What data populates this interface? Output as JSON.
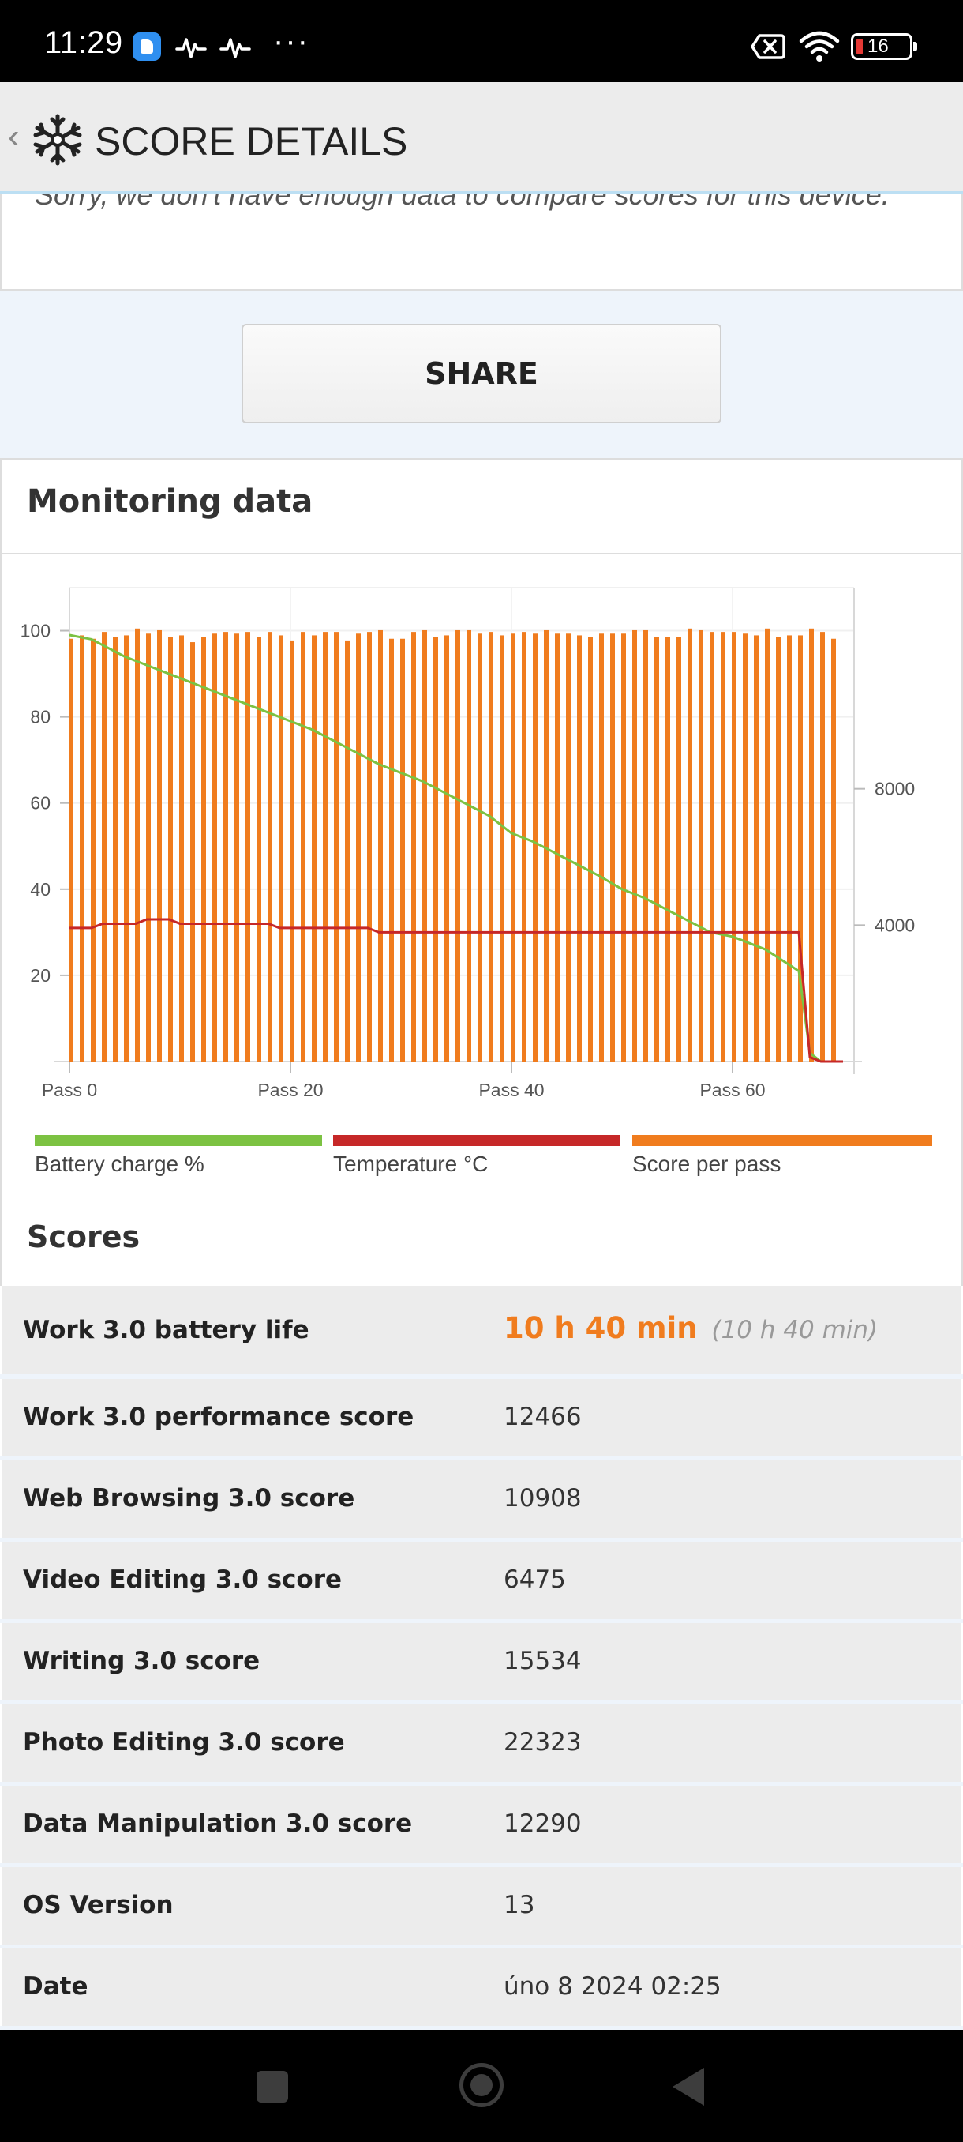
{
  "status_bar": {
    "time": "11:29",
    "battery_level": "16",
    "icons": [
      "app-notification-icon",
      "activity-pulse-icon",
      "activity-pulse-icon",
      "more-dots-icon",
      "no-sim-icon",
      "wifi-icon",
      "battery-icon"
    ]
  },
  "header": {
    "back_glyph": "‹",
    "title": "SCORE DETAILS",
    "icon": "gear-icon"
  },
  "info": {
    "text": "Sorry, we don't have enough data to compare scores for this device."
  },
  "share": {
    "label": "SHARE"
  },
  "monitoring": {
    "title": "Monitoring data",
    "legend": [
      {
        "label": "Battery charge %",
        "color": "#7cc242"
      },
      {
        "label": "Temperature °C",
        "color": "#c62828"
      },
      {
        "label": "Score per pass",
        "color": "#f07c1e"
      }
    ]
  },
  "chart_data": {
    "type": "bar",
    "x_axis": {
      "tick_labels": [
        "Pass 0",
        "Pass 20",
        "Pass 40",
        "Pass 60"
      ],
      "ticks": [
        0,
        20,
        40,
        60
      ],
      "range": [
        0,
        71
      ]
    },
    "y_left": {
      "tick_labels": [
        "20",
        "40",
        "60",
        "80",
        "100"
      ],
      "ticks": [
        20,
        40,
        60,
        80,
        100
      ],
      "range": [
        0,
        110
      ]
    },
    "y_right": {
      "tick_labels": [
        "4000",
        "8000"
      ],
      "ticks": [
        4000,
        8000
      ],
      "range": [
        0,
        13900
      ]
    },
    "grid": true,
    "legend_placement": "bottom",
    "series": [
      {
        "name": "Score per pass",
        "axis": "right",
        "color": "#f07c1e",
        "values": [
          12400,
          12500,
          12400,
          12600,
          12450,
          12500,
          12700,
          12550,
          12650,
          12450,
          12500,
          12300,
          12450,
          12550,
          12600,
          12550,
          12600,
          12450,
          12600,
          12500,
          12350,
          12600,
          12500,
          12600,
          12600,
          12350,
          12550,
          12600,
          12650,
          12400,
          12400,
          12600,
          12650,
          12450,
          12500,
          12650,
          12650,
          12550,
          12600,
          12500,
          12550,
          12600,
          12550,
          12650,
          12550,
          12550,
          12500,
          12450,
          12550,
          12550,
          12550,
          12650,
          12650,
          12450,
          12450,
          12450,
          12700,
          12650,
          12600,
          12600,
          12600,
          12550,
          12500,
          12700,
          12450,
          12500,
          12500,
          12700,
          12600,
          12400
        ]
      },
      {
        "name": "Battery charge %",
        "axis": "left",
        "color": "#7cc242",
        "x": [
          0,
          2,
          5,
          8,
          10,
          12,
          15,
          18,
          20,
          22,
          25,
          28,
          30,
          32,
          35,
          38,
          40,
          42,
          45,
          48,
          50,
          52,
          55,
          58,
          60,
          63,
          66,
          67,
          68,
          70
        ],
        "values": [
          99,
          98,
          94,
          91,
          89,
          87,
          84,
          81,
          79,
          77,
          73,
          69,
          67,
          65,
          61,
          57,
          53,
          51,
          47,
          43,
          40,
          38,
          34,
          30,
          29,
          26,
          21,
          2,
          0,
          0
        ]
      },
      {
        "name": "Temperature °C",
        "axis": "left",
        "color": "#c62828",
        "x": [
          0,
          2,
          3,
          6,
          7,
          9,
          10,
          18,
          19,
          27,
          28,
          40,
          50,
          60,
          66,
          67,
          68,
          70
        ],
        "values": [
          31,
          31,
          32,
          32,
          33,
          33,
          32,
          32,
          31,
          31,
          30,
          30,
          30,
          30,
          30,
          1,
          0,
          0
        ]
      }
    ]
  },
  "scores": {
    "title": "Scores",
    "battery_life": {
      "label": "Work 3.0 battery life",
      "value": "10 h 40 min",
      "secondary": "(10 h 40 min)"
    },
    "rows": [
      {
        "label": "Work 3.0 performance score",
        "value": "12466"
      },
      {
        "label": "Web Browsing 3.0 score",
        "value": "10908"
      },
      {
        "label": "Video Editing 3.0 score",
        "value": "6475"
      },
      {
        "label": "Writing 3.0 score",
        "value": "15534"
      },
      {
        "label": "Photo Editing 3.0 score",
        "value": "22323"
      },
      {
        "label": "Data Manipulation 3.0 score",
        "value": "12290"
      },
      {
        "label": "OS Version",
        "value": "13"
      },
      {
        "label": "Date",
        "value": "úno 8 2024 02:25"
      }
    ]
  }
}
